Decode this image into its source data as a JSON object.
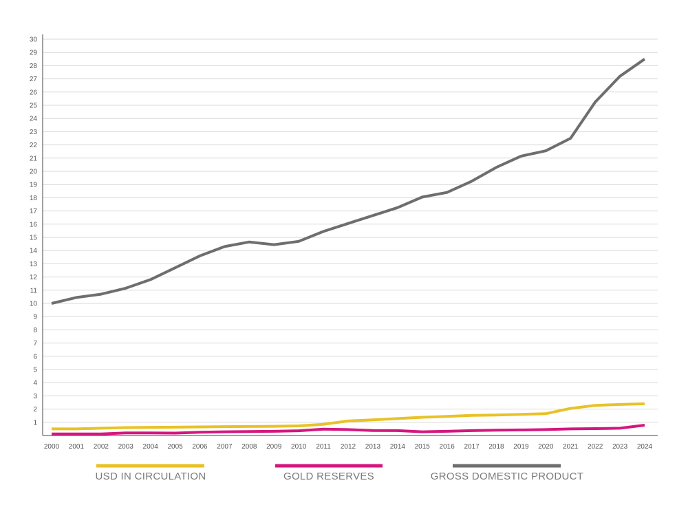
{
  "chart_data": {
    "type": "line",
    "title": "",
    "xlabel": "",
    "ylabel": "",
    "x": [
      "2000",
      "2001",
      "2002",
      "2003",
      "2004",
      "2005",
      "2006",
      "2007",
      "2008",
      "2009",
      "2010",
      "2011",
      "2012",
      "2013",
      "2014",
      "2015",
      "2016",
      "2017",
      "2018",
      "2019",
      "2020",
      "2021",
      "2022",
      "2023",
      "2024"
    ],
    "ylim": [
      0,
      30
    ],
    "yticks": [
      1,
      2,
      3,
      4,
      5,
      6,
      7,
      8,
      9,
      10,
      11,
      12,
      13,
      14,
      15,
      16,
      17,
      18,
      19,
      20,
      21,
      22,
      23,
      24,
      25,
      26,
      27,
      28,
      29,
      30
    ],
    "grid": true,
    "legend_position": "bottom",
    "series": [
      {
        "name": "USD IN CIRCULATION",
        "color": "#e8c227",
        "values": [
          0.5,
          0.5,
          0.55,
          0.6,
          0.62,
          0.63,
          0.65,
          0.67,
          0.68,
          0.7,
          0.73,
          0.85,
          1.1,
          1.18,
          1.28,
          1.38,
          1.45,
          1.52,
          1.55,
          1.6,
          1.65,
          2.05,
          2.28,
          2.35,
          2.4
        ]
      },
      {
        "name": "GOLD RESERVES",
        "color": "#d4177f",
        "values": [
          0.12,
          0.12,
          0.12,
          0.2,
          0.2,
          0.18,
          0.25,
          0.28,
          0.3,
          0.32,
          0.36,
          0.48,
          0.45,
          0.38,
          0.37,
          0.28,
          0.32,
          0.37,
          0.4,
          0.42,
          0.45,
          0.5,
          0.52,
          0.55,
          0.78
        ]
      },
      {
        "name": "GROSS DOMESTIC PRODUCT",
        "color": "#6d6e70",
        "values": [
          10.0,
          10.45,
          10.7,
          11.15,
          11.8,
          12.7,
          13.6,
          14.3,
          14.65,
          14.45,
          14.7,
          15.45,
          16.05,
          16.65,
          17.25,
          18.05,
          18.4,
          19.25,
          20.3,
          21.15,
          21.55,
          22.5,
          25.25,
          27.2,
          28.5
        ]
      }
    ]
  }
}
